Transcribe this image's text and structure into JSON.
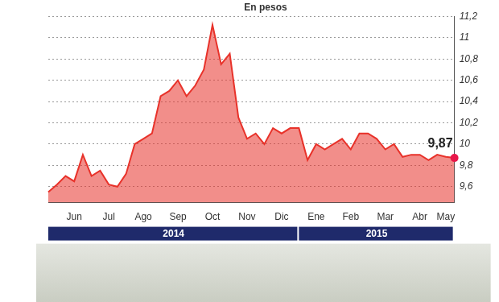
{
  "chart_data": {
    "type": "line",
    "title": "En pesos",
    "categories": [
      null,
      null,
      null,
      "Jun",
      null,
      null,
      null,
      "Jul",
      null,
      null,
      null,
      "Ago",
      null,
      null,
      null,
      "Sep",
      null,
      null,
      null,
      "Oct",
      null,
      null,
      null,
      "Nov",
      null,
      null,
      null,
      "Dic",
      null,
      null,
      null,
      "Ene",
      null,
      null,
      null,
      "Feb",
      null,
      null,
      null,
      "Mar",
      null,
      null,
      null,
      "Abr",
      null,
      null,
      "May",
      null
    ],
    "values": [
      9.55,
      9.62,
      9.7,
      9.65,
      9.9,
      9.7,
      9.75,
      9.62,
      9.6,
      9.72,
      10.0,
      10.05,
      10.1,
      10.45,
      10.5,
      10.6,
      10.45,
      10.55,
      10.7,
      11.12,
      10.75,
      10.85,
      10.25,
      10.05,
      10.1,
      10.0,
      10.15,
      10.1,
      10.15,
      10.15,
      9.85,
      10.0,
      9.95,
      10.0,
      10.05,
      9.95,
      10.1,
      10.1,
      10.05,
      9.95,
      10.0,
      9.88,
      9.9,
      9.9,
      9.85,
      9.9,
      9.88,
      9.87
    ],
    "color": "#e8322a",
    "ylim": [
      9.45,
      11.2
    ],
    "yticks": [
      {
        "value": 9.6,
        "label": "9,6"
      },
      {
        "value": 9.8,
        "label": "9,8"
      },
      10,
      {
        "value": 10.2,
        "label": "10,2"
      },
      {
        "value": 10.4,
        "label": "10,4"
      },
      {
        "value": 10.6,
        "label": "10,6"
      },
      {
        "value": 10.8,
        "label": "10,8"
      },
      11,
      {
        "value": 11.2,
        "label": "11,2"
      }
    ],
    "grid": true,
    "years": [
      {
        "label": "2014",
        "first": "Jun",
        "last": "Dic"
      },
      {
        "label": "2015",
        "first": "Ene",
        "last": "May"
      }
    ],
    "annotations": [
      {
        "label": "9,87",
        "value": 9.87
      }
    ]
  }
}
